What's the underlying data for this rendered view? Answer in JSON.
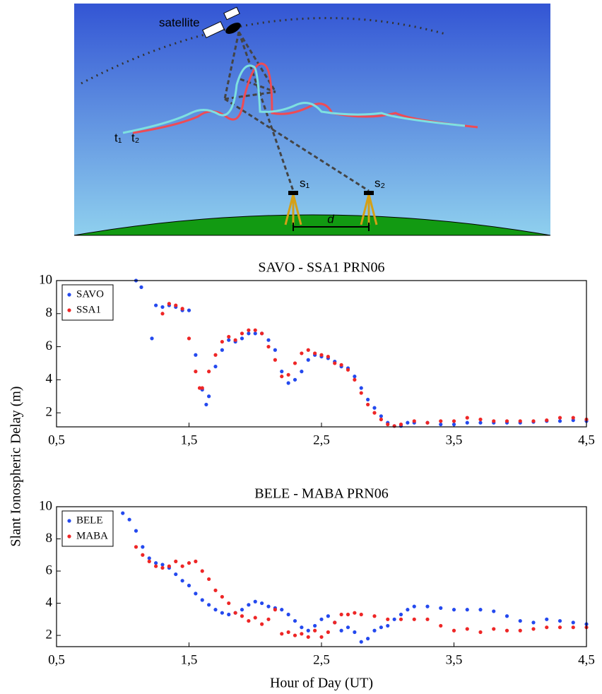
{
  "diagram": {
    "labels": {
      "satellite": "satellite",
      "t1": "t₁",
      "t2": "t₂",
      "s1": "s₁",
      "s2": "s₂",
      "d": "d"
    }
  },
  "chart_data": [
    {
      "type": "scatter",
      "title": "SAVO - SSA1   PRN06",
      "xlim": [
        0.5,
        4.5
      ],
      "ylim": [
        1.15,
        10
      ],
      "xticks": [
        {
          "value": 0.5,
          "label": "0,5"
        },
        {
          "value": 1.5,
          "label": "1,5"
        },
        {
          "value": 2.5,
          "label": "2,5"
        },
        {
          "value": 3.5,
          "label": "3,5"
        },
        {
          "value": 4.5,
          "label": "4,5"
        }
      ],
      "yticks": [
        2,
        4,
        6,
        8,
        10
      ],
      "legend": "upper-left",
      "series": [
        {
          "name": "SAVO",
          "color": "#2449ee",
          "x": [
            1.1,
            1.14,
            1.22,
            1.25,
            1.3,
            1.35,
            1.4,
            1.45,
            1.5,
            1.55,
            1.6,
            1.63,
            1.65,
            1.7,
            1.75,
            1.8,
            1.85,
            1.9,
            1.95,
            2.0,
            2.05,
            2.1,
            2.15,
            2.2,
            2.25,
            2.3,
            2.35,
            2.4,
            2.45,
            2.5,
            2.55,
            2.6,
            2.65,
            2.7,
            2.75,
            2.8,
            2.85,
            2.9,
            2.95,
            3.0,
            3.05,
            3.1,
            3.15,
            3.2,
            3.3,
            3.4,
            3.5,
            3.6,
            3.7,
            3.8,
            3.9,
            4.0,
            4.1,
            4.2,
            4.3,
            4.4,
            4.5
          ],
          "values": [
            10.0,
            9.6,
            6.5,
            8.5,
            8.4,
            8.5,
            8.4,
            8.2,
            8.2,
            5.5,
            3.4,
            2.5,
            3.0,
            4.8,
            5.8,
            6.4,
            6.3,
            6.5,
            6.8,
            6.8,
            6.8,
            6.4,
            5.8,
            4.5,
            3.8,
            4.0,
            4.5,
            5.2,
            5.5,
            5.4,
            5.3,
            5.1,
            4.8,
            4.7,
            4.2,
            3.5,
            2.8,
            2.3,
            1.8,
            1.4,
            1.2,
            1.2,
            1.4,
            1.4,
            1.4,
            1.3,
            1.3,
            1.4,
            1.4,
            1.4,
            1.4,
            1.4,
            1.45,
            1.5,
            1.5,
            1.55,
            1.5
          ]
        },
        {
          "name": "SSA1",
          "color": "#ee2626",
          "x": [
            1.3,
            1.35,
            1.4,
            1.45,
            1.5,
            1.55,
            1.58,
            1.6,
            1.65,
            1.7,
            1.75,
            1.8,
            1.85,
            1.9,
            1.95,
            2.0,
            2.05,
            2.1,
            2.15,
            2.2,
            2.25,
            2.3,
            2.35,
            2.4,
            2.45,
            2.5,
            2.55,
            2.6,
            2.65,
            2.7,
            2.75,
            2.8,
            2.85,
            2.9,
            2.95,
            3.0,
            3.05,
            3.1,
            3.2,
            3.3,
            3.4,
            3.5,
            3.6,
            3.7,
            3.8,
            3.9,
            4.0,
            4.1,
            4.2,
            4.3,
            4.4,
            4.5
          ],
          "values": [
            8.0,
            8.6,
            8.5,
            8.3,
            6.5,
            4.5,
            3.5,
            3.5,
            4.5,
            5.5,
            6.3,
            6.6,
            6.4,
            6.8,
            7.0,
            7.0,
            6.8,
            6.0,
            5.2,
            4.2,
            4.3,
            5.0,
            5.6,
            5.8,
            5.6,
            5.5,
            5.4,
            5.0,
            4.9,
            4.6,
            4.0,
            3.2,
            2.5,
            2.0,
            1.6,
            1.3,
            1.2,
            1.3,
            1.5,
            1.4,
            1.5,
            1.5,
            1.7,
            1.6,
            1.5,
            1.5,
            1.5,
            1.5,
            1.55,
            1.7,
            1.7,
            1.6
          ]
        }
      ]
    },
    {
      "type": "scatter",
      "title": "BELE - MABA   PRN06",
      "xlabel": "Hour of Day (UT)",
      "ylabel": "Slant Ionospheric Delay (m)",
      "xlim": [
        0.5,
        4.5
      ],
      "ylim": [
        1.3,
        10
      ],
      "xticks": [
        {
          "value": 0.5,
          "label": "0,5"
        },
        {
          "value": 1.5,
          "label": "1,5"
        },
        {
          "value": 2.5,
          "label": "2,5"
        },
        {
          "value": 3.5,
          "label": "3,5"
        },
        {
          "value": 4.5,
          "label": "4,5"
        }
      ],
      "yticks": [
        2,
        4,
        6,
        8,
        10
      ],
      "legend": "upper-left",
      "series": [
        {
          "name": "BELE",
          "color": "#2449ee",
          "x": [
            1.0,
            1.05,
            1.1,
            1.15,
            1.2,
            1.25,
            1.3,
            1.35,
            1.4,
            1.45,
            1.5,
            1.55,
            1.6,
            1.65,
            1.7,
            1.75,
            1.8,
            1.85,
            1.9,
            1.95,
            2.0,
            2.05,
            2.1,
            2.15,
            2.2,
            2.25,
            2.3,
            2.35,
            2.4,
            2.45,
            2.5,
            2.55,
            2.6,
            2.65,
            2.7,
            2.75,
            2.8,
            2.85,
            2.9,
            2.95,
            3.0,
            3.05,
            3.1,
            3.15,
            3.2,
            3.3,
            3.4,
            3.5,
            3.6,
            3.7,
            3.8,
            3.9,
            4.0,
            4.1,
            4.2,
            4.3,
            4.4,
            4.5
          ],
          "values": [
            9.6,
            9.2,
            8.5,
            7.5,
            6.8,
            6.5,
            6.4,
            6.2,
            5.8,
            5.4,
            5.1,
            4.6,
            4.2,
            3.9,
            3.6,
            3.4,
            3.3,
            3.4,
            3.6,
            3.9,
            4.1,
            4.0,
            3.8,
            3.7,
            3.6,
            3.3,
            2.9,
            2.5,
            2.3,
            2.6,
            3.0,
            3.2,
            2.8,
            2.3,
            2.5,
            2.2,
            1.6,
            1.8,
            2.3,
            2.5,
            2.6,
            3.0,
            3.3,
            3.6,
            3.8,
            3.8,
            3.7,
            3.6,
            3.6,
            3.6,
            3.5,
            3.2,
            2.9,
            2.8,
            3.0,
            2.9,
            2.8,
            2.7
          ]
        },
        {
          "name": "MABA",
          "color": "#ee2626",
          "x": [
            1.1,
            1.15,
            1.2,
            1.25,
            1.3,
            1.35,
            1.4,
            1.45,
            1.5,
            1.55,
            1.6,
            1.65,
            1.7,
            1.75,
            1.8,
            1.85,
            1.9,
            1.95,
            2.0,
            2.05,
            2.1,
            2.15,
            2.2,
            2.25,
            2.3,
            2.35,
            2.4,
            2.45,
            2.5,
            2.55,
            2.6,
            2.65,
            2.7,
            2.75,
            2.8,
            2.9,
            3.0,
            3.1,
            3.2,
            3.3,
            3.4,
            3.5,
            3.6,
            3.7,
            3.8,
            3.9,
            4.0,
            4.1,
            4.2,
            4.3,
            4.4,
            4.5
          ],
          "values": [
            7.5,
            7.0,
            6.6,
            6.3,
            6.2,
            6.3,
            6.6,
            6.3,
            6.5,
            6.6,
            6.0,
            5.5,
            4.8,
            4.4,
            4.0,
            3.4,
            3.2,
            2.9,
            3.1,
            2.7,
            3.0,
            3.6,
            2.1,
            2.2,
            2.0,
            2.1,
            1.9,
            2.3,
            1.9,
            2.2,
            2.8,
            3.3,
            3.3,
            3.4,
            3.3,
            3.2,
            3.0,
            3.0,
            3.0,
            3.0,
            2.6,
            2.3,
            2.4,
            2.2,
            2.4,
            2.3,
            2.3,
            2.4,
            2.5,
            2.5,
            2.5,
            2.5
          ]
        }
      ]
    }
  ]
}
